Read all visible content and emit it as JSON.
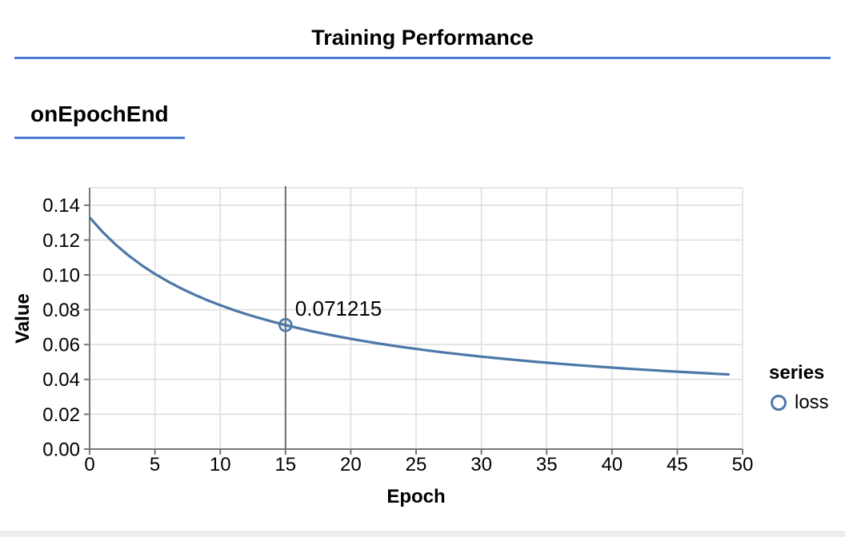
{
  "header": {
    "title": "Training Performance"
  },
  "section": {
    "title": "onEpochEnd"
  },
  "colors": {
    "accent_rule": "#4a7dd2",
    "series_line": "#4c78a8",
    "grid": "#dddddd",
    "axis": "#767676",
    "label_text": "#000000",
    "highlight_rule": "#6b6b6b",
    "bottom_strip": "#efefef"
  },
  "chart_data": {
    "type": "line",
    "title": "",
    "xlabel": "Epoch",
    "ylabel": "Value",
    "xlim": [
      0,
      50
    ],
    "ylim": [
      0,
      0.15
    ],
    "x_ticks": [
      0,
      5,
      10,
      15,
      20,
      25,
      30,
      35,
      40,
      45,
      50
    ],
    "y_ticks": [
      0.0,
      0.02,
      0.04,
      0.06,
      0.08,
      0.1,
      0.12,
      0.14
    ],
    "grid": true,
    "legend": {
      "title": "series",
      "items": [
        "loss"
      ],
      "position": "right"
    },
    "series": [
      {
        "name": "loss",
        "x": [
          0,
          1,
          2,
          3,
          4,
          5,
          6,
          7,
          8,
          9,
          10,
          11,
          12,
          13,
          14,
          15,
          16,
          17,
          18,
          19,
          20,
          21,
          22,
          23,
          24,
          25,
          26,
          27,
          28,
          29,
          30,
          31,
          32,
          33,
          34,
          35,
          36,
          37,
          38,
          39,
          40,
          41,
          42,
          43,
          44,
          45,
          46,
          47,
          48,
          49
        ],
        "y": [
          0.133,
          0.124581,
          0.11733,
          0.111019,
          0.105476,
          0.100571,
          0.096197,
          0.092274,
          0.088735,
          0.085526,
          0.082604,
          0.079931,
          0.077477,
          0.075216,
          0.073127,
          0.071215,
          0.069388,
          0.06771,
          0.066141,
          0.064673,
          0.063295,
          0.062,
          0.06078,
          0.059628,
          0.05854,
          0.05751,
          0.056534,
          0.055607,
          0.054727,
          0.053888,
          0.053089,
          0.052327,
          0.0516,
          0.050904,
          0.050238,
          0.0496,
          0.048989,
          0.048403,
          0.047839,
          0.047298,
          0.046777,
          0.046276,
          0.045793,
          0.045328,
          0.044879,
          0.044446,
          0.044027,
          0.043623,
          0.043232,
          0.042854
        ]
      }
    ],
    "highlight": {
      "x": 15,
      "y": 0.071215,
      "label": "0.071215"
    }
  }
}
